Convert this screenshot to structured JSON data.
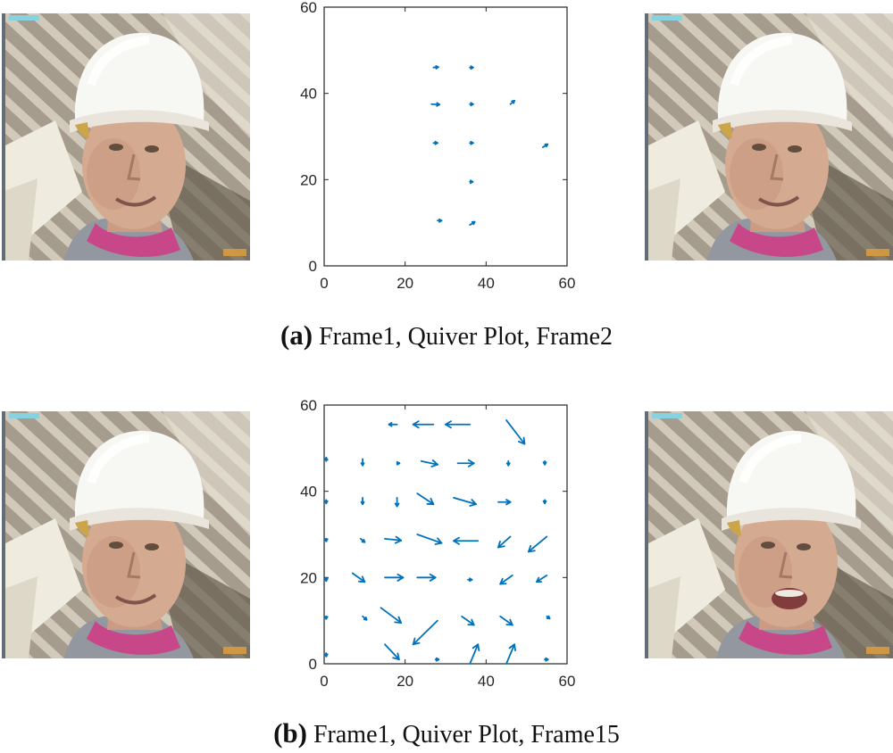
{
  "figure": {
    "panels": [
      {
        "id": "a",
        "label": "(a)",
        "caption": "Frame1, Quiver Plot, Frame2",
        "left_image": "face-frame-1",
        "right_image": "face-frame-2"
      },
      {
        "id": "b",
        "label": "(b)",
        "caption": "Frame1, Quiver Plot, Frame15",
        "left_image": "face-frame-1",
        "right_image": "face-frame-15"
      }
    ]
  },
  "chart_data": [
    {
      "type": "quiver",
      "title": "",
      "xlabel": "",
      "ylabel": "",
      "xlim": [
        0,
        60
      ],
      "ylim": [
        0,
        60
      ],
      "xticks": [
        0,
        20,
        40,
        60
      ],
      "yticks": [
        0,
        20,
        40,
        60
      ],
      "grid": false,
      "color": "#0072bd",
      "vectors": [
        {
          "x": 27,
          "y": 46,
          "u": 1.2,
          "v": 0.1
        },
        {
          "x": 36,
          "y": 46,
          "u": 0.8,
          "v": 0.0
        },
        {
          "x": 26.5,
          "y": 37.5,
          "u": 2.0,
          "v": -0.1
        },
        {
          "x": 36,
          "y": 37.5,
          "u": 0.8,
          "v": 0.0
        },
        {
          "x": 46,
          "y": 37.5,
          "u": 1.0,
          "v": 0.8
        },
        {
          "x": 27,
          "y": 28.5,
          "u": 1.0,
          "v": 0.0
        },
        {
          "x": 36,
          "y": 28.5,
          "u": 0.8,
          "v": 0.0
        },
        {
          "x": 54,
          "y": 27.5,
          "u": 1.2,
          "v": 0.7
        },
        {
          "x": 36,
          "y": 19.5,
          "u": 0.7,
          "v": 0.0
        },
        {
          "x": 28,
          "y": 10.5,
          "u": 1.0,
          "v": 0.0
        },
        {
          "x": 36,
          "y": 9.5,
          "u": 1.2,
          "v": 0.7
        }
      ]
    },
    {
      "type": "quiver",
      "title": "",
      "xlabel": "",
      "ylabel": "",
      "xlim": [
        0,
        60
      ],
      "ylim": [
        0,
        60
      ],
      "xticks": [
        0,
        20,
        40,
        60
      ],
      "yticks": [
        0,
        20,
        40,
        60
      ],
      "grid": false,
      "color": "#0072bd",
      "vectors": [
        {
          "x": 18,
          "y": 55.5,
          "u": -2,
          "v": 0
        },
        {
          "x": 27,
          "y": 55.5,
          "u": -5,
          "v": 0
        },
        {
          "x": 36,
          "y": 55.5,
          "u": -6,
          "v": 0
        },
        {
          "x": 45,
          "y": 56.5,
          "u": 4.5,
          "v": -5.5
        },
        {
          "x": 0.5,
          "y": 47,
          "u": 0,
          "v": 0.8
        },
        {
          "x": 9.5,
          "y": 47.5,
          "u": 0,
          "v": -1.5
        },
        {
          "x": 18,
          "y": 46.5,
          "u": 0.6,
          "v": 0
        },
        {
          "x": 24,
          "y": 47,
          "u": 4,
          "v": -0.8
        },
        {
          "x": 33,
          "y": 46.5,
          "u": 4,
          "v": 0
        },
        {
          "x": 45.5,
          "y": 47,
          "u": 0,
          "v": -1
        },
        {
          "x": 54.5,
          "y": 47,
          "u": 0,
          "v": -0.8
        },
        {
          "x": 0.5,
          "y": 38,
          "u": 0,
          "v": -0.8
        },
        {
          "x": 9.5,
          "y": 38.5,
          "u": 0,
          "v": -1.5
        },
        {
          "x": 18,
          "y": 38.5,
          "u": 0,
          "v": -2
        },
        {
          "x": 23,
          "y": 39.5,
          "u": 4,
          "v": -2.5
        },
        {
          "x": 32,
          "y": 38.5,
          "u": 5.5,
          "v": -1.5
        },
        {
          "x": 43,
          "y": 37.5,
          "u": 3,
          "v": 0
        },
        {
          "x": 54.5,
          "y": 38,
          "u": 0,
          "v": -0.8
        },
        {
          "x": 0.5,
          "y": 29,
          "u": 0,
          "v": -0.6
        },
        {
          "x": 9,
          "y": 29,
          "u": 1,
          "v": -0.8
        },
        {
          "x": 15,
          "y": 29,
          "u": 4,
          "v": -0.4
        },
        {
          "x": 23,
          "y": 30,
          "u": 6,
          "v": -2
        },
        {
          "x": 38,
          "y": 28.5,
          "u": -6,
          "v": 0
        },
        {
          "x": 46,
          "y": 29.5,
          "u": -3,
          "v": -2.5
        },
        {
          "x": 55,
          "y": 29.5,
          "u": -4.5,
          "v": -3.5
        },
        {
          "x": 0.5,
          "y": 20,
          "u": 0,
          "v": -0.8
        },
        {
          "x": 7,
          "y": 21,
          "u": 3,
          "v": -2
        },
        {
          "x": 15,
          "y": 20,
          "u": 4.5,
          "v": 0
        },
        {
          "x": 23,
          "y": 20,
          "u": 4.5,
          "v": 0
        },
        {
          "x": 35.5,
          "y": 19.5,
          "u": 1,
          "v": 0
        },
        {
          "x": 46.5,
          "y": 20.5,
          "u": -3,
          "v": -2
        },
        {
          "x": 55,
          "y": 20.5,
          "u": -2.5,
          "v": -1.5
        },
        {
          "x": 0.5,
          "y": 11,
          "u": 0,
          "v": -0.6
        },
        {
          "x": 9.5,
          "y": 11,
          "u": 1,
          "v": -0.8
        },
        {
          "x": 14,
          "y": 13,
          "u": 5,
          "v": -3.5
        },
        {
          "x": 28,
          "y": 10,
          "u": -6,
          "v": -5.5
        },
        {
          "x": 34,
          "y": 11,
          "u": 3,
          "v": -2
        },
        {
          "x": 43.5,
          "y": 11,
          "u": 3,
          "v": -2
        },
        {
          "x": 55,
          "y": 11,
          "u": 0.7,
          "v": -0.5
        },
        {
          "x": 0.5,
          "y": 2.5,
          "u": 0,
          "v": -0.8
        },
        {
          "x": 15,
          "y": 4.5,
          "u": 3.5,
          "v": -3.5
        },
        {
          "x": 27.5,
          "y": 1,
          "u": 0.8,
          "v": 0
        },
        {
          "x": 36,
          "y": 0,
          "u": 2,
          "v": 4.5
        },
        {
          "x": 45,
          "y": 0,
          "u": 2,
          "v": 4.5
        },
        {
          "x": 54.5,
          "y": 1,
          "u": 0.8,
          "v": 0
        }
      ]
    }
  ]
}
